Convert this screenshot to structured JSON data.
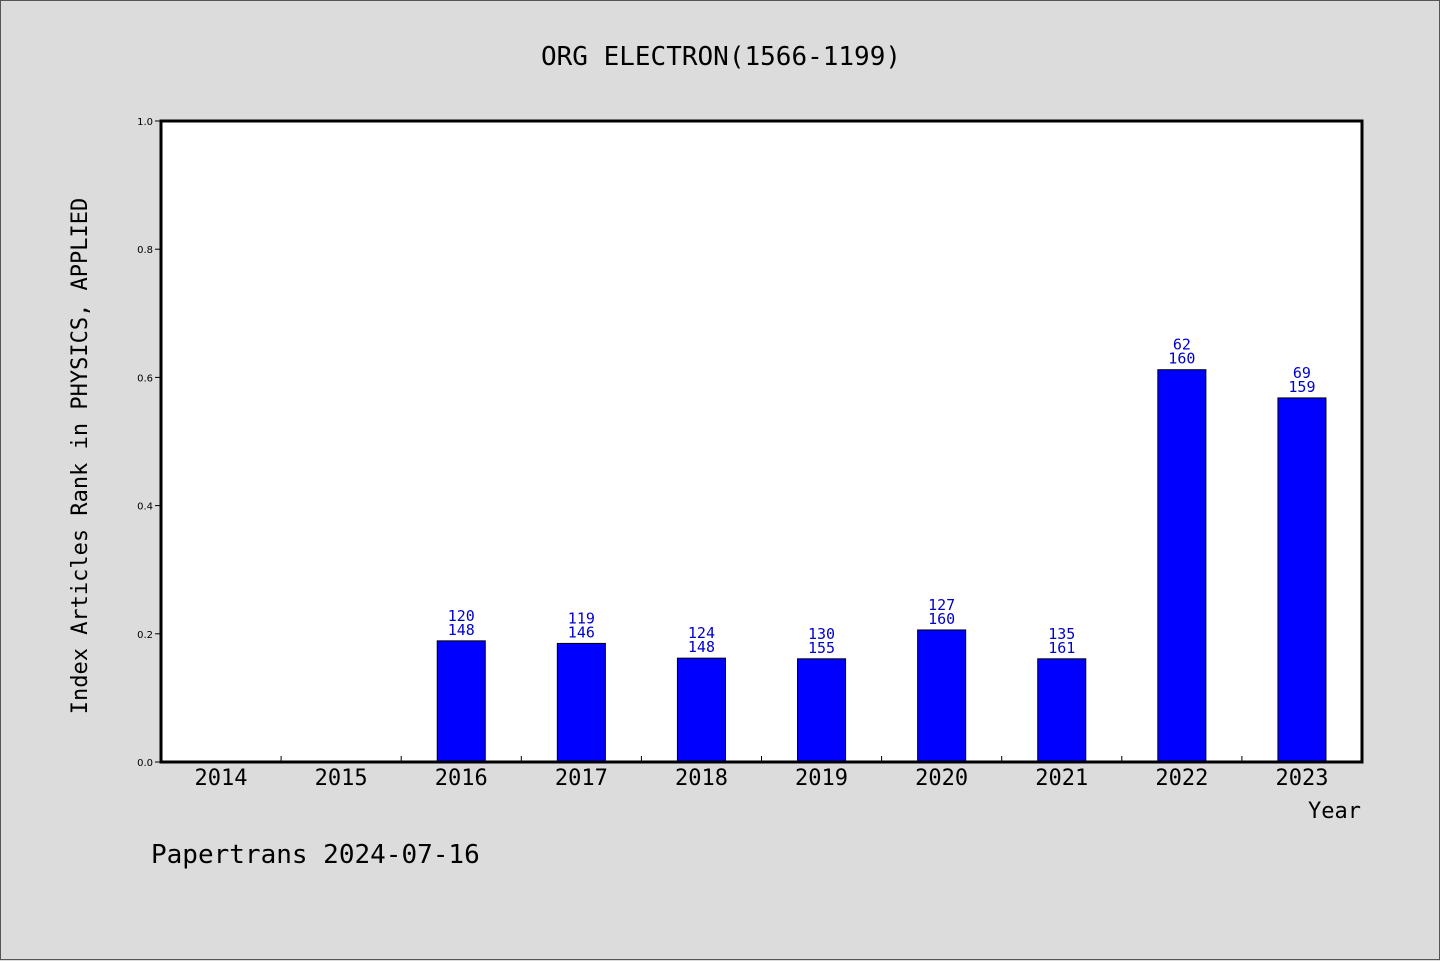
{
  "chart_data": {
    "type": "bar",
    "title": "ORG ELECTRON(1566-1199)",
    "xlabel": "Year",
    "ylabel": "Index Articles Rank in PHYSICS, APPLIED",
    "categories": [
      "2014",
      "2015",
      "2016",
      "2017",
      "2018",
      "2019",
      "2020",
      "2021",
      "2022",
      "2023"
    ],
    "values": [
      0,
      0,
      0.189,
      0.185,
      0.162,
      0.161,
      0.206,
      0.161,
      0.612,
      0.568
    ],
    "label_top": [
      "",
      "",
      "120",
      "119",
      "124",
      "130",
      "127",
      "135",
      "62",
      "69"
    ],
    "label_bottom": [
      "",
      "",
      "148",
      "146",
      "148",
      "155",
      "160",
      "161",
      "160",
      "159"
    ],
    "ylim": [
      0,
      1.0
    ],
    "yticks": [
      "0.0",
      "0.2",
      "0.4",
      "0.6",
      "0.8",
      "1.0"
    ],
    "bar_color": "#0000ff",
    "label_color": "#0000cc",
    "grid": false
  },
  "footer": {
    "text": "Papertrans 2024-07-16"
  }
}
